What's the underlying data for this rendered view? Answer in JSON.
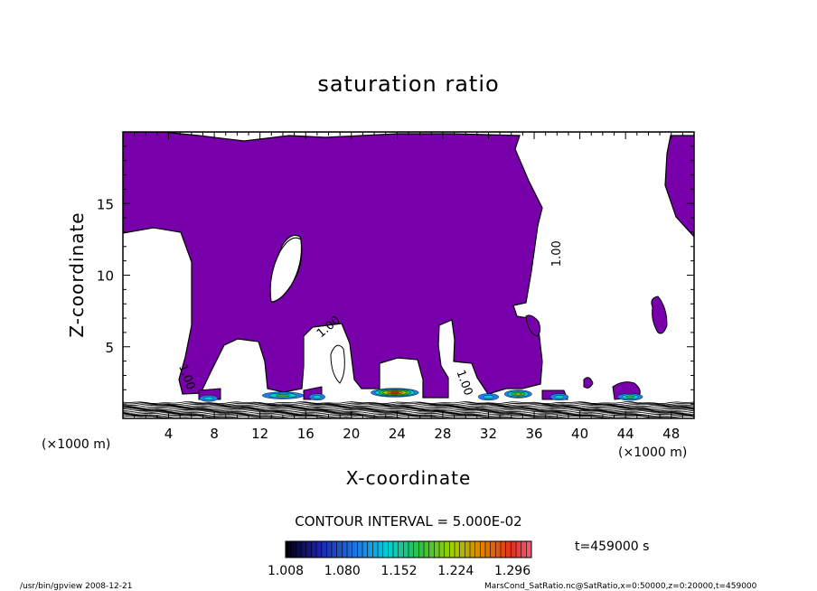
{
  "chart_data": {
    "type": "heatmap",
    "title": "saturation ratio",
    "xlabel": "X-coordinate",
    "ylabel": "Z-coordinate",
    "x_unit_left": "(×1000 m)",
    "x_unit_right": "(×1000 m)",
    "xlim": [
      0,
      50
    ],
    "ylim": [
      0,
      20
    ],
    "x_ticks": [
      4,
      8,
      12,
      16,
      20,
      24,
      28,
      32,
      36,
      40,
      44,
      48
    ],
    "y_ticks": [
      5,
      10,
      15
    ],
    "contour_interval": "CONTOUR INTERVAL = 5.000E-02",
    "time_label": "t=459000 s",
    "colorbar": {
      "labels": [
        "1.008",
        "1.080",
        "1.152",
        "1.224",
        "1.296"
      ],
      "min": 1.008,
      "max": 1.32
    },
    "contour_labels": [
      {
        "text": "1.00",
        "x": 38.3,
        "z": 11.5,
        "rotate": -90
      },
      {
        "text": "1.00",
        "x": 18.2,
        "z": 6.2,
        "rotate": -40
      },
      {
        "text": "1.00",
        "x": 5.3,
        "z": 2.8,
        "rotate": 70
      },
      {
        "text": "1.00",
        "x": 29.6,
        "z": 2.4,
        "rotate": 70
      }
    ],
    "hotspots": [
      {
        "x": 7.5,
        "z": 1.4,
        "w": 1.6,
        "intensity": 0.3
      },
      {
        "x": 14.0,
        "z": 1.6,
        "w": 3.6,
        "intensity": 0.45
      },
      {
        "x": 17.0,
        "z": 1.5,
        "w": 1.4,
        "intensity": 0.35
      },
      {
        "x": 23.8,
        "z": 1.8,
        "w": 4.2,
        "intensity": 0.95
      },
      {
        "x": 32.0,
        "z": 1.5,
        "w": 1.8,
        "intensity": 0.35
      },
      {
        "x": 34.6,
        "z": 1.7,
        "w": 2.4,
        "intensity": 0.7
      },
      {
        "x": 38.2,
        "z": 1.5,
        "w": 1.6,
        "intensity": 0.35
      },
      {
        "x": 44.4,
        "z": 1.5,
        "w": 2.2,
        "intensity": 0.45
      }
    ]
  },
  "footer": {
    "left": "/usr/bin/gpview  2008-12-21",
    "right": "MarsCond_SatRatio.nc@SatRatio,x=0:50000,z=0:20000,t=459000"
  }
}
